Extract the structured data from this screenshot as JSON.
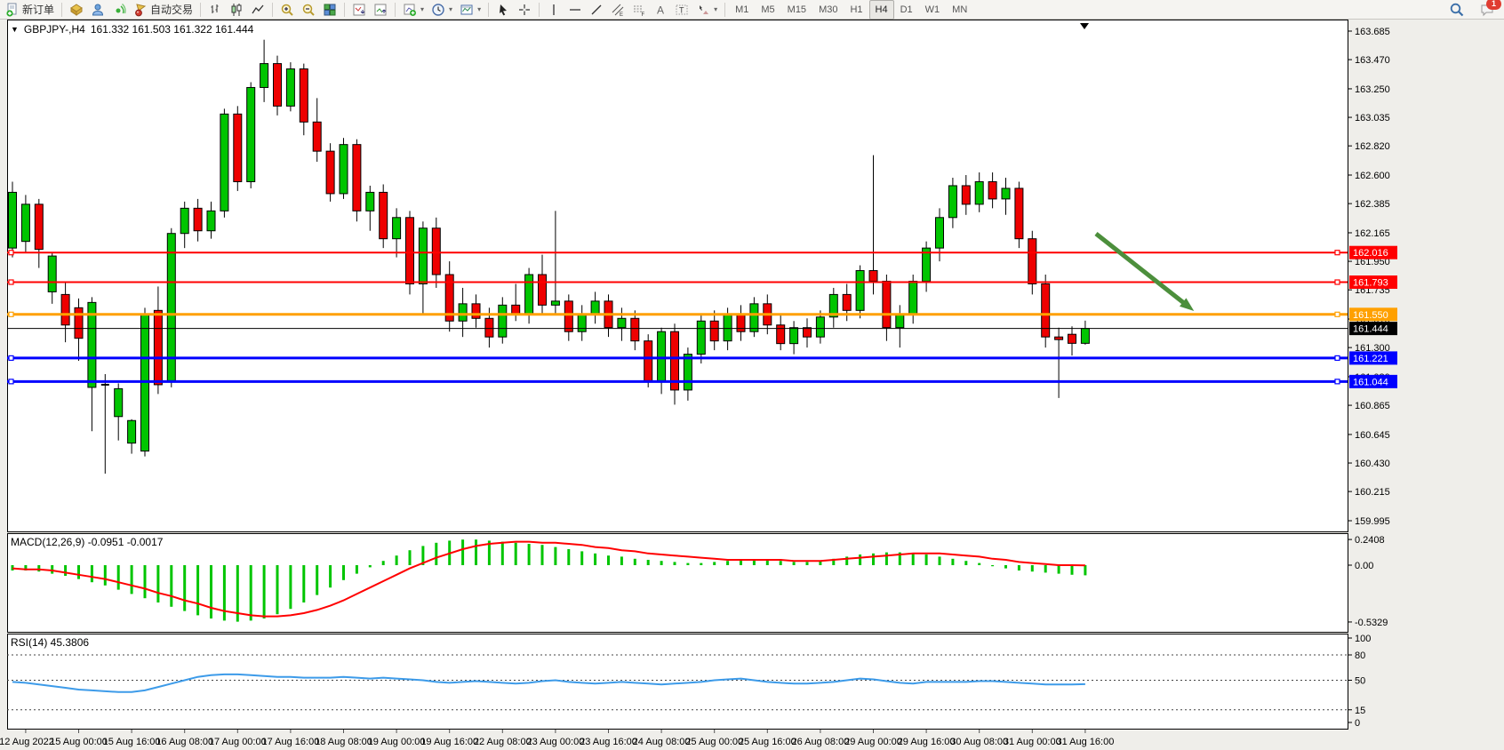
{
  "app": {
    "name": "MetaTrader terminal"
  },
  "toolbar": {
    "new_order_label": "新订单",
    "autotrading_label": "自动交易",
    "timeframes": [
      "M1",
      "M5",
      "M15",
      "M30",
      "H1",
      "H4",
      "D1",
      "W1",
      "MN"
    ],
    "active_timeframe": "H4",
    "notification_badge": "1",
    "groups": [
      [
        {
          "name": "new-order-button",
          "icon": "new-order-icon",
          "label_key": "new_order_label"
        }
      ],
      [
        {
          "name": "chart-window-button",
          "icon": "gold-box-icon"
        },
        {
          "name": "data-window-button",
          "icon": "person-icon"
        },
        {
          "name": "navigator-button",
          "icon": "signal-icon"
        },
        {
          "name": "autotrading-button",
          "icon": "autotrading-icon",
          "label_key": "autotrading_label"
        }
      ],
      [
        {
          "name": "bar-chart-button",
          "icon": "bar-chart-icon"
        },
        {
          "name": "candlestick-button",
          "icon": "candlestick-icon"
        },
        {
          "name": "line-chart-button",
          "icon": "line-chart-icon"
        }
      ],
      [
        {
          "name": "zoom-in-button",
          "icon": "zoom-in-icon"
        },
        {
          "name": "zoom-out-button",
          "icon": "zoom-out-icon"
        },
        {
          "name": "tile-windows-button",
          "icon": "tile-windows-icon"
        }
      ],
      [
        {
          "name": "indicator-window-button",
          "icon": "chart-arrow-down-icon"
        },
        {
          "name": "indicator-window-2-button",
          "icon": "chart-arrow-up-icon"
        }
      ],
      [
        {
          "name": "add-indicator-button",
          "icon": "add-indicator-icon",
          "dropdown": true
        },
        {
          "name": "period-button",
          "icon": "clock-icon",
          "dropdown": true
        },
        {
          "name": "template-button",
          "icon": "template-icon",
          "dropdown": true
        }
      ],
      [
        {
          "name": "cursor-button",
          "icon": "cursor-icon"
        },
        {
          "name": "crosshair-button",
          "icon": "crosshair-icon"
        }
      ],
      [
        {
          "name": "vertical-line-button",
          "icon": "vertical-line-icon"
        },
        {
          "name": "horizontal-line-button",
          "icon": "horizontal-line-icon"
        },
        {
          "name": "trendline-button",
          "icon": "trendline-icon"
        },
        {
          "name": "channel-button",
          "icon": "channel-icon"
        },
        {
          "name": "fibonacci-button",
          "icon": "fibonacci-icon"
        },
        {
          "name": "text-button",
          "icon": "text-icon"
        },
        {
          "name": "text-label-button",
          "icon": "text-label-icon"
        },
        {
          "name": "shapes-button",
          "icon": "shapes-icon",
          "dropdown": true
        }
      ]
    ]
  },
  "chart": {
    "symbol_period": "GBPJPY-,H4",
    "ohlc_text": "161.332 161.503 161.322 161.444",
    "collapse_glyph": "▼",
    "current_ohlc": {
      "open": "161.332",
      "high": "161.503",
      "low": "161.322",
      "close": "161.444"
    }
  },
  "price_axis": {
    "ticks": [
      "163.685",
      "163.470",
      "163.250",
      "163.035",
      "162.820",
      "162.600",
      "162.385",
      "162.165",
      "161.950",
      "161.735",
      "161.515",
      "161.300",
      "161.080",
      "160.865",
      "160.645",
      "160.430",
      "160.215",
      "159.995"
    ],
    "line_labels": [
      {
        "text": "162.016",
        "color": "#FF0000"
      },
      {
        "text": "161.793",
        "color": "#FF0000"
      },
      {
        "text": "161.550",
        "color": "#FFA000"
      },
      {
        "text": "161.444",
        "color": "#000000"
      },
      {
        "text": "161.221",
        "color": "#0000FF"
      },
      {
        "text": "161.044",
        "color": "#0000FF"
      }
    ]
  },
  "time_axis": {
    "labels": [
      "12 Aug 2022",
      "15 Aug 00:00",
      "15 Aug 16:00",
      "16 Aug 08:00",
      "17 Aug 00:00",
      "17 Aug 16:00",
      "18 Aug 08:00",
      "19 Aug 00:00",
      "19 Aug 16:00",
      "22 Aug 08:00",
      "23 Aug 00:00",
      "23 Aug 16:00",
      "24 Aug 08:00",
      "25 Aug 00:00",
      "25 Aug 16:00",
      "26 Aug 08:00",
      "29 Aug 00:00",
      "29 Aug 16:00",
      "30 Aug 08:00",
      "31 Aug 00:00",
      "31 Aug 16:00"
    ]
  },
  "macd": {
    "title_text": "MACD(12,26,9) -0.0951 -0.0017",
    "name": "MACD(12,26,9)",
    "main_value": "-0.0951",
    "signal_value": "-0.0017",
    "scale_labels": [
      "0.2408",
      "0.00",
      "-0.5329"
    ],
    "scale_values": [
      0.2408,
      0,
      -0.5329
    ]
  },
  "rsi": {
    "title_text": "RSI(14) 45.3806",
    "name": "RSI(14)",
    "value": "45.3806",
    "scale_labels": [
      "100",
      "80",
      "50",
      "15",
      "0"
    ],
    "scale_values": [
      100,
      80,
      50,
      15,
      0
    ],
    "level_lines": [
      80,
      50,
      15
    ]
  },
  "colors": {
    "bull": "#00C500",
    "bear": "#EE0000",
    "wick": "#000000",
    "red_line": "#FF0000",
    "orange_line": "#FFA000",
    "blue_line": "#0000FF",
    "bid_line": "#000000",
    "arrow": "#4C8F3C",
    "macd_hist": "#00C500",
    "macd_signal": "#FF0000",
    "rsi_line": "#3D9BE9",
    "pane_bg": "#FFFFFF",
    "pane_border": "#000000"
  },
  "chart_data": {
    "type": "candlestick",
    "symbol": "GBPJPY-",
    "timeframe": "H4",
    "title": "GBPJPY-,H4 161.332 161.503 161.322 161.444",
    "ylim": [
      159.995,
      163.685
    ],
    "x_labels": [
      "12 Aug 2022",
      "15 Aug 00:00",
      "15 Aug 16:00",
      "16 Aug 08:00",
      "17 Aug 00:00",
      "17 Aug 16:00",
      "18 Aug 08:00",
      "19 Aug 00:00",
      "19 Aug 16:00",
      "22 Aug 08:00",
      "23 Aug 00:00",
      "23 Aug 16:00",
      "24 Aug 08:00",
      "25 Aug 00:00",
      "25 Aug 16:00",
      "26 Aug 08:00",
      "29 Aug 00:00",
      "29 Aug 16:00",
      "30 Aug 08:00",
      "31 Aug 00:00",
      "31 Aug 16:00"
    ],
    "candles_ohlc": [
      [
        162.05,
        162.55,
        161.98,
        162.47
      ],
      [
        162.1,
        162.45,
        162.02,
        162.38
      ],
      [
        162.38,
        162.42,
        161.9,
        162.04
      ],
      [
        161.72,
        162.02,
        161.63,
        161.99
      ],
      [
        161.7,
        161.79,
        161.34,
        161.47
      ],
      [
        161.6,
        161.67,
        161.2,
        161.37
      ],
      [
        161.0,
        161.68,
        160.67,
        161.64
      ],
      [
        161.02,
        161.1,
        160.35,
        161.01
      ],
      [
        160.78,
        161.03,
        160.6,
        160.99
      ],
      [
        160.58,
        160.76,
        160.5,
        160.75
      ],
      [
        160.52,
        161.6,
        160.48,
        161.55
      ],
      [
        161.58,
        161.76,
        160.95,
        161.02
      ],
      [
        161.05,
        162.2,
        161.0,
        162.16
      ],
      [
        162.16,
        162.4,
        162.05,
        162.35
      ],
      [
        162.35,
        162.42,
        162.1,
        162.18
      ],
      [
        162.18,
        162.4,
        162.12,
        162.33
      ],
      [
        162.33,
        163.1,
        162.28,
        163.06
      ],
      [
        163.06,
        163.12,
        162.48,
        162.55
      ],
      [
        162.55,
        163.3,
        162.5,
        163.26
      ],
      [
        163.26,
        163.62,
        163.15,
        163.44
      ],
      [
        163.44,
        163.5,
        163.05,
        163.12
      ],
      [
        163.12,
        163.45,
        163.08,
        163.4
      ],
      [
        163.4,
        163.44,
        162.9,
        163.0
      ],
      [
        163.0,
        163.18,
        162.7,
        162.78
      ],
      [
        162.78,
        162.84,
        162.4,
        162.46
      ],
      [
        162.46,
        162.88,
        162.42,
        162.83
      ],
      [
        162.83,
        162.87,
        162.25,
        162.33
      ],
      [
        162.33,
        162.52,
        162.18,
        162.47
      ],
      [
        162.47,
        162.53,
        162.05,
        162.12
      ],
      [
        162.12,
        162.35,
        161.98,
        162.28
      ],
      [
        162.28,
        162.33,
        161.7,
        161.78
      ],
      [
        161.78,
        162.25,
        161.55,
        162.2
      ],
      [
        162.2,
        162.28,
        161.75,
        161.85
      ],
      [
        161.85,
        161.95,
        161.42,
        161.5
      ],
      [
        161.5,
        161.75,
        161.38,
        161.63
      ],
      [
        161.63,
        161.7,
        161.45,
        161.52
      ],
      [
        161.52,
        161.6,
        161.3,
        161.38
      ],
      [
        161.38,
        161.68,
        161.33,
        161.62
      ],
      [
        161.62,
        161.78,
        161.5,
        161.55
      ],
      [
        161.55,
        161.9,
        161.48,
        161.85
      ],
      [
        161.85,
        162.0,
        161.55,
        161.62
      ],
      [
        161.62,
        162.33,
        161.55,
        161.65
      ],
      [
        161.65,
        161.7,
        161.35,
        161.42
      ],
      [
        161.42,
        161.62,
        161.35,
        161.55
      ],
      [
        161.55,
        161.72,
        161.48,
        161.65
      ],
      [
        161.65,
        161.7,
        161.38,
        161.45
      ],
      [
        161.45,
        161.6,
        161.35,
        161.52
      ],
      [
        161.52,
        161.58,
        161.28,
        161.35
      ],
      [
        161.35,
        161.4,
        161.0,
        161.05
      ],
      [
        161.05,
        161.45,
        160.95,
        161.42
      ],
      [
        161.42,
        161.48,
        160.87,
        160.98
      ],
      [
        160.98,
        161.3,
        160.9,
        161.25
      ],
      [
        161.25,
        161.55,
        161.18,
        161.5
      ],
      [
        161.5,
        161.58,
        161.28,
        161.35
      ],
      [
        161.35,
        161.6,
        161.28,
        161.55
      ],
      [
        161.55,
        161.62,
        161.35,
        161.42
      ],
      [
        161.42,
        161.68,
        161.38,
        161.63
      ],
      [
        161.63,
        161.7,
        161.4,
        161.47
      ],
      [
        161.47,
        161.55,
        161.28,
        161.33
      ],
      [
        161.33,
        161.5,
        161.25,
        161.45
      ],
      [
        161.45,
        161.52,
        161.3,
        161.38
      ],
      [
        161.38,
        161.58,
        161.33,
        161.53
      ],
      [
        161.53,
        161.75,
        161.45,
        161.7
      ],
      [
        161.7,
        161.78,
        161.5,
        161.58
      ],
      [
        161.58,
        161.92,
        161.52,
        161.88
      ],
      [
        161.88,
        162.75,
        161.7,
        161.8
      ],
      [
        161.8,
        161.85,
        161.35,
        161.45
      ],
      [
        161.45,
        161.62,
        161.3,
        161.55
      ],
      [
        161.55,
        161.85,
        161.48,
        161.8
      ],
      [
        161.8,
        162.1,
        161.72,
        162.05
      ],
      [
        162.05,
        162.35,
        161.95,
        162.28
      ],
      [
        162.28,
        162.58,
        162.2,
        162.52
      ],
      [
        162.52,
        162.6,
        162.3,
        162.38
      ],
      [
        162.38,
        162.62,
        162.32,
        162.55
      ],
      [
        162.55,
        162.62,
        162.35,
        162.42
      ],
      [
        162.42,
        162.58,
        162.3,
        162.5
      ],
      [
        162.5,
        162.55,
        162.05,
        162.12
      ],
      [
        162.12,
        162.18,
        161.7,
        161.78
      ],
      [
        161.78,
        161.85,
        161.3,
        161.38
      ],
      [
        161.38,
        161.45,
        160.92,
        161.36
      ],
      [
        161.4,
        161.46,
        161.24,
        161.332
      ],
      [
        161.332,
        161.503,
        161.322,
        161.444
      ]
    ],
    "horizontal_lines": [
      {
        "price": 162.016,
        "color": "#FF0000",
        "width": 2
      },
      {
        "price": 161.793,
        "color": "#FF0000",
        "width": 2
      },
      {
        "price": 161.55,
        "color": "#FFA000",
        "width": 3
      },
      {
        "price": 161.444,
        "color": "#000000",
        "width": 1
      },
      {
        "price": 161.221,
        "color": "#0000FF",
        "width": 3
      },
      {
        "price": 161.044,
        "color": "#0000FF",
        "width": 3
      }
    ],
    "annotation_arrow": {
      "from_price": 162.17,
      "to_price": 161.42,
      "color": "#4C8F3C",
      "direction": "down-right"
    },
    "indicators": [
      {
        "name": "MACD",
        "params": [
          12,
          26,
          9
        ],
        "main": "-0.0951",
        "signal_last": "-0.0017",
        "ylim": [
          -0.5329,
          0.2408
        ],
        "histogram": [
          -0.05,
          -0.05,
          -0.06,
          -0.08,
          -0.1,
          -0.13,
          -0.16,
          -0.19,
          -0.23,
          -0.27,
          -0.31,
          -0.35,
          -0.39,
          -0.43,
          -0.47,
          -0.5,
          -0.52,
          -0.53,
          -0.52,
          -0.5,
          -0.46,
          -0.41,
          -0.35,
          -0.28,
          -0.21,
          -0.14,
          -0.08,
          -0.02,
          0.04,
          0.09,
          0.14,
          0.18,
          0.21,
          0.23,
          0.24,
          0.24,
          0.23,
          0.22,
          0.21,
          0.2,
          0.19,
          0.17,
          0.15,
          0.13,
          0.11,
          0.09,
          0.08,
          0.06,
          0.05,
          0.04,
          0.03,
          0.02,
          0.02,
          0.03,
          0.04,
          0.05,
          0.05,
          0.05,
          0.04,
          0.03,
          0.03,
          0.04,
          0.06,
          0.08,
          0.1,
          0.11,
          0.12,
          0.12,
          0.11,
          0.1,
          0.08,
          0.06,
          0.04,
          0.02,
          -0.01,
          -0.03,
          -0.05,
          -0.06,
          -0.07,
          -0.08,
          -0.09,
          -0.0951
        ],
        "signal": [
          -0.03,
          -0.04,
          -0.04,
          -0.05,
          -0.07,
          -0.09,
          -0.11,
          -0.13,
          -0.16,
          -0.19,
          -0.22,
          -0.26,
          -0.29,
          -0.33,
          -0.36,
          -0.4,
          -0.43,
          -0.45,
          -0.47,
          -0.48,
          -0.48,
          -0.47,
          -0.45,
          -0.42,
          -0.38,
          -0.33,
          -0.27,
          -0.21,
          -0.15,
          -0.09,
          -0.03,
          0.02,
          0.07,
          0.11,
          0.15,
          0.18,
          0.2,
          0.21,
          0.22,
          0.22,
          0.21,
          0.21,
          0.2,
          0.19,
          0.17,
          0.16,
          0.14,
          0.13,
          0.11,
          0.1,
          0.09,
          0.08,
          0.07,
          0.06,
          0.05,
          0.05,
          0.05,
          0.05,
          0.05,
          0.04,
          0.04,
          0.04,
          0.05,
          0.06,
          0.07,
          0.08,
          0.09,
          0.1,
          0.11,
          0.11,
          0.11,
          0.1,
          0.09,
          0.08,
          0.06,
          0.05,
          0.03,
          0.02,
          0.01,
          0.0,
          0.0,
          -0.0017
        ]
      },
      {
        "name": "RSI",
        "params": [
          14
        ],
        "last": "45.3806",
        "ylim": [
          0,
          100
        ],
        "levels": [
          80,
          50,
          15
        ],
        "series": [
          48,
          47,
          45,
          43,
          41,
          39,
          38,
          37,
          36,
          36,
          38,
          42,
          46,
          50,
          54,
          56,
          57,
          57,
          56,
          55,
          54,
          54,
          53,
          53,
          53,
          54,
          53,
          52,
          53,
          52,
          51,
          50,
          48,
          47,
          48,
          49,
          48,
          47,
          46,
          47,
          49,
          50,
          48,
          47,
          46,
          47,
          48,
          47,
          46,
          45,
          46,
          47,
          48,
          50,
          51,
          52,
          50,
          48,
          47,
          46,
          46,
          47,
          48,
          50,
          52,
          51,
          49,
          47,
          46,
          48,
          48,
          48,
          48,
          49,
          49,
          48,
          47,
          46,
          45,
          45,
          45,
          45.38
        ]
      }
    ]
  }
}
